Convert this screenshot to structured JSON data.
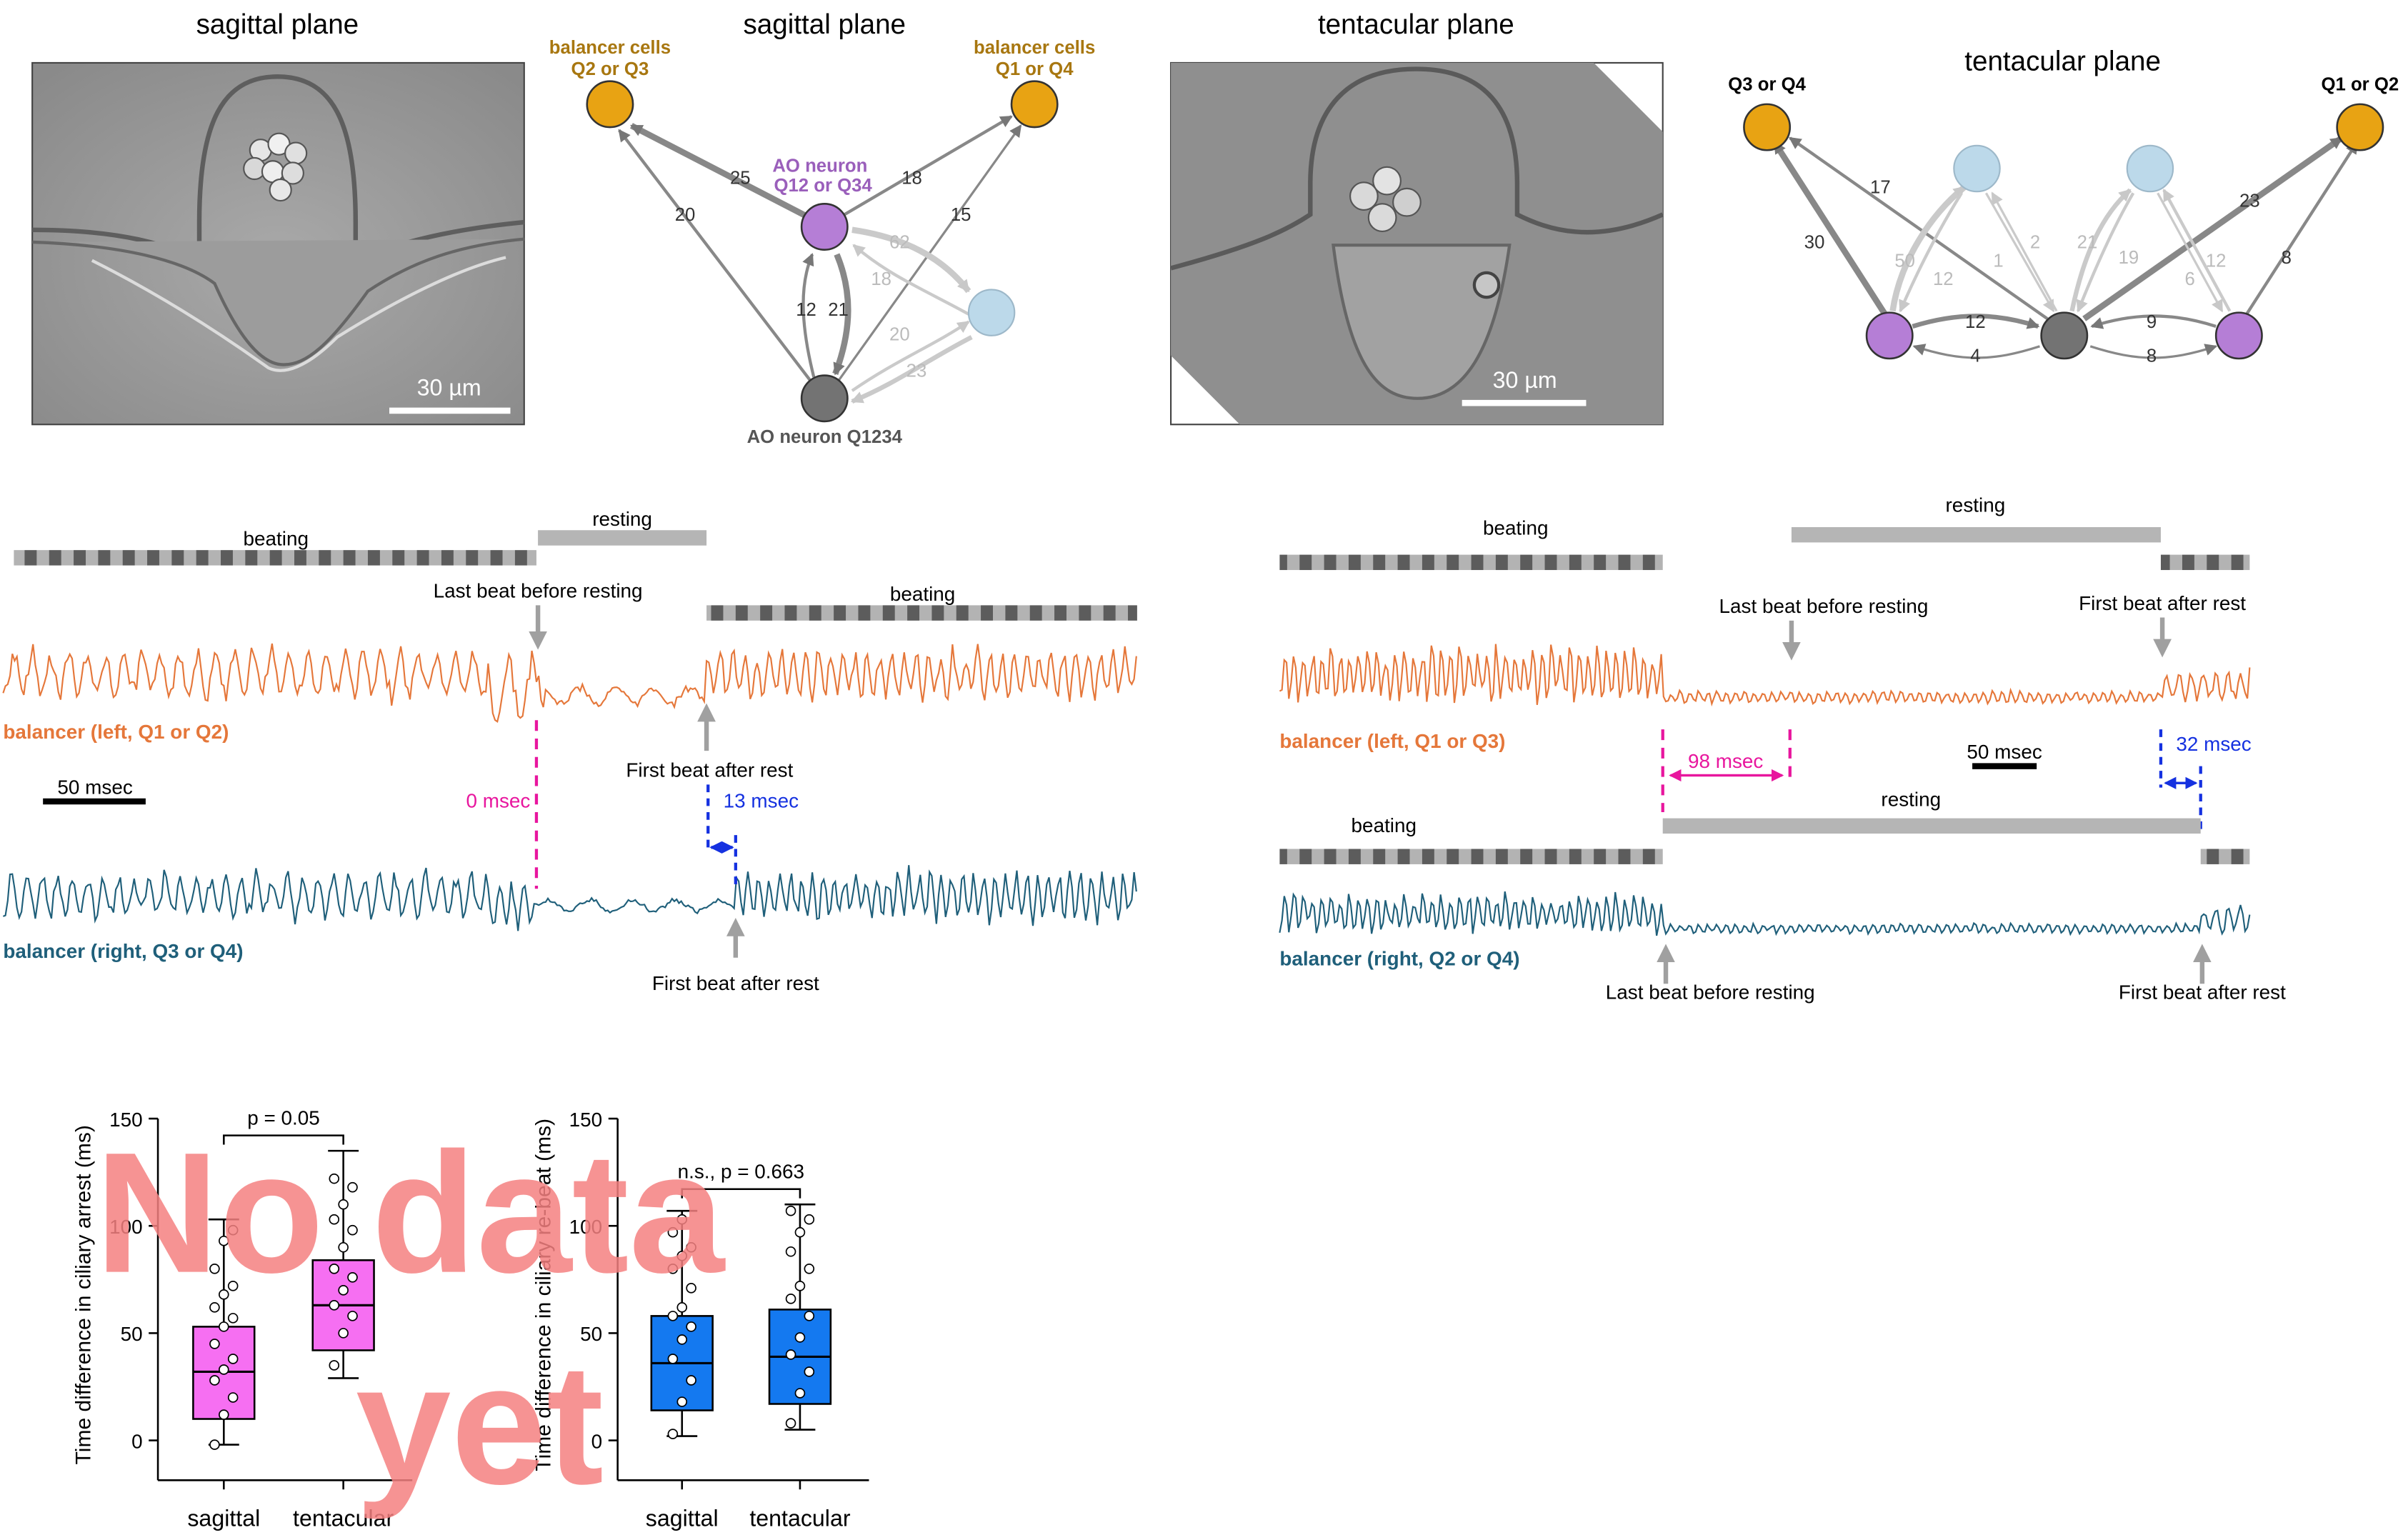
{
  "panels": {
    "img1_title": "sagittal plane",
    "net1_title": "sagittal plane",
    "img2_title": "tentacular plane",
    "net2_title": "tentacular plane",
    "scalebar1": "30 µm",
    "scalebar2": "30 µm"
  },
  "net1": {
    "node_left_label_l1": "balancer cells",
    "node_left_label_l2": "Q2 or Q3",
    "node_right_label_l1": "balancer cells",
    "node_right_label_l2": "Q1 or Q4",
    "ao12_label_l1": "AO neuron",
    "ao12_label_l2": "Q12 or Q34",
    "ao1234_label": "AO neuron Q1234",
    "edges": [
      "20",
      "25",
      "18",
      "15",
      "62",
      "18",
      "12",
      "21",
      "20",
      "23"
    ]
  },
  "net2": {
    "left_label": "Q3 or Q4",
    "right_label": "Q1 or Q2",
    "edges": [
      "17",
      "30",
      "50",
      "12",
      "1",
      "2",
      "21",
      "19",
      "6",
      "12",
      "23",
      "8",
      "12",
      "4",
      "9",
      "8"
    ]
  },
  "trace_left": {
    "beating1": "beating",
    "resting": "resting",
    "beating2": "beating",
    "last_beat": "Last beat before resting",
    "first_beat_top": "First beat after rest",
    "first_beat_bottom": "First beat after rest",
    "zero_msec": "0 msec",
    "delta_msec": "13 msec",
    "scalebar": "50 msec",
    "label_left": "balancer (left, Q1 or Q2)",
    "label_right": "balancer (right, Q3 or Q4)"
  },
  "trace_right": {
    "beating1": "beating",
    "resting1": "resting",
    "last_beat_top": "Last beat before resting",
    "first_beat_top": "First beat after rest",
    "label_left": "balancer (left, Q1 or Q3)",
    "delta1": "98 msec",
    "scalebar": "50 msec",
    "delta2": "32 msec",
    "beating2": "beating",
    "resting2": "resting",
    "label_right": "balancer (right, Q2 or Q4)",
    "last_beat_bottom": "Last beat before resting",
    "first_beat_bottom": "First beat after rest"
  },
  "colors": {
    "orange_trace": "#e5773a",
    "teal_trace": "#1f5f7a",
    "balancer_node": "#e8a313",
    "ao12_node": "#b57ed6",
    "ao1234_node": "#737373",
    "light_node": "#bcd9ea",
    "magenta": "#e8169e",
    "blue": "#1531e0",
    "box_pink": "#f66ff2",
    "box_blue": "#1479f0",
    "watermark": "#f58181"
  },
  "chart_data": [
    {
      "type": "box",
      "ylabel": "Time difference in ciliary arrest (ms)",
      "ylim": [
        0,
        150
      ],
      "yticks": [
        0,
        50,
        100,
        150
      ],
      "categories": [
        "sagittal",
        "tentacular"
      ],
      "p_label": "p = 0.05",
      "series": [
        {
          "category": "sagittal",
          "min": -2,
          "q1": 10,
          "median": 32,
          "q3": 53,
          "max": 103,
          "points": [
            -2,
            12,
            20,
            28,
            33,
            38,
            45,
            53,
            57,
            62,
            68,
            72,
            80,
            93,
            98
          ]
        },
        {
          "category": "tentacular",
          "min": 29,
          "q1": 42,
          "median": 63,
          "q3": 84,
          "max": 135,
          "points": [
            35,
            50,
            58,
            63,
            70,
            76,
            80,
            90,
            98,
            103,
            110,
            118,
            122
          ]
        }
      ]
    },
    {
      "type": "box",
      "ylabel": "Time difference in ciliary re-beat (ms)",
      "ylim": [
        0,
        150
      ],
      "yticks": [
        0,
        50,
        100,
        150
      ],
      "categories": [
        "sagittal",
        "tentacular"
      ],
      "p_label": "n.s., p = 0.663",
      "series": [
        {
          "category": "sagittal",
          "min": 2,
          "q1": 14,
          "median": 36,
          "q3": 58,
          "max": 107,
          "points": [
            3,
            18,
            28,
            38,
            47,
            53,
            58,
            62,
            71,
            80,
            86,
            90,
            97,
            103
          ]
        },
        {
          "category": "tentacular",
          "min": 5,
          "q1": 17,
          "median": 39,
          "q3": 61,
          "max": 110,
          "points": [
            8,
            22,
            32,
            40,
            48,
            58,
            66,
            72,
            80,
            88,
            97,
            103,
            107
          ]
        }
      ]
    }
  ],
  "watermark": {
    "line1": "No data",
    "line2": "yet"
  }
}
